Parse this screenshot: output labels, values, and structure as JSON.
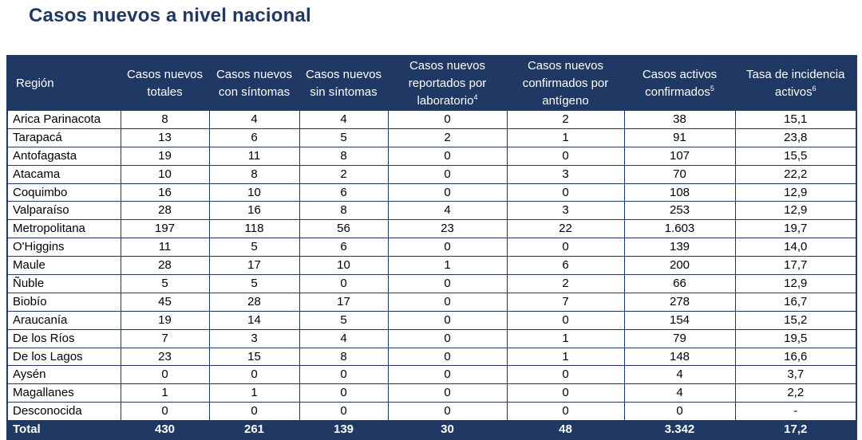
{
  "title": "Casos nuevos a nivel nacional",
  "headers": [
    {
      "text": "Región",
      "sup": ""
    },
    {
      "text": "Casos nuevos totales",
      "sup": ""
    },
    {
      "text": "Casos nuevos con síntomas",
      "sup": ""
    },
    {
      "text": "Casos nuevos sin síntomas",
      "sup": ""
    },
    {
      "text": "Casos nuevos reportados por laboratorio",
      "sup": "4"
    },
    {
      "text": "Casos nuevos confirmados por antígeno",
      "sup": ""
    },
    {
      "text": "Casos activos confirmados",
      "sup": "5"
    },
    {
      "text": "Tasa de incidencia activos",
      "sup": "6"
    }
  ],
  "rows": [
    [
      "Arica Parinacota",
      "8",
      "4",
      "4",
      "0",
      "2",
      "38",
      "15,1"
    ],
    [
      "Tarapacá",
      "13",
      "6",
      "5",
      "2",
      "1",
      "91",
      "23,8"
    ],
    [
      "Antofagasta",
      "19",
      "11",
      "8",
      "0",
      "0",
      "107",
      "15,5"
    ],
    [
      "Atacama",
      "10",
      "8",
      "2",
      "0",
      "3",
      "70",
      "22,2"
    ],
    [
      "Coquimbo",
      "16",
      "10",
      "6",
      "0",
      "0",
      "108",
      "12,9"
    ],
    [
      "Valparaíso",
      "28",
      "16",
      "8",
      "4",
      "3",
      "253",
      "12,9"
    ],
    [
      "Metropolitana",
      "197",
      "118",
      "56",
      "23",
      "22",
      "1.603",
      "19,7"
    ],
    [
      "O'Higgins",
      "11",
      "5",
      "6",
      "0",
      "0",
      "139",
      "14,0"
    ],
    [
      "Maule",
      "28",
      "17",
      "10",
      "1",
      "6",
      "200",
      "17,7"
    ],
    [
      "Ñuble",
      "5",
      "5",
      "0",
      "0",
      "2",
      "66",
      "12,9"
    ],
    [
      "Biobío",
      "45",
      "28",
      "17",
      "0",
      "7",
      "278",
      "16,7"
    ],
    [
      "Araucanía",
      "19",
      "14",
      "5",
      "0",
      "0",
      "154",
      "15,2"
    ],
    [
      "De los Ríos",
      "7",
      "3",
      "4",
      "0",
      "1",
      "79",
      "19,5"
    ],
    [
      "De los Lagos",
      "23",
      "15",
      "8",
      "0",
      "1",
      "148",
      "16,6"
    ],
    [
      "Aysén",
      "0",
      "0",
      "0",
      "0",
      "0",
      "4",
      "3,7"
    ],
    [
      "Magallanes",
      "1",
      "1",
      "0",
      "0",
      "0",
      "4",
      "2,2"
    ],
    [
      "Desconocida",
      "0",
      "0",
      "0",
      "0",
      "0",
      "0",
      "-"
    ]
  ],
  "total": [
    "Total",
    "430",
    "261",
    "139",
    "30",
    "48",
    "3.342",
    "17,2"
  ],
  "colors": {
    "header_bg": "#1f3864",
    "title": "#1f3864",
    "border": "#1f3864"
  }
}
